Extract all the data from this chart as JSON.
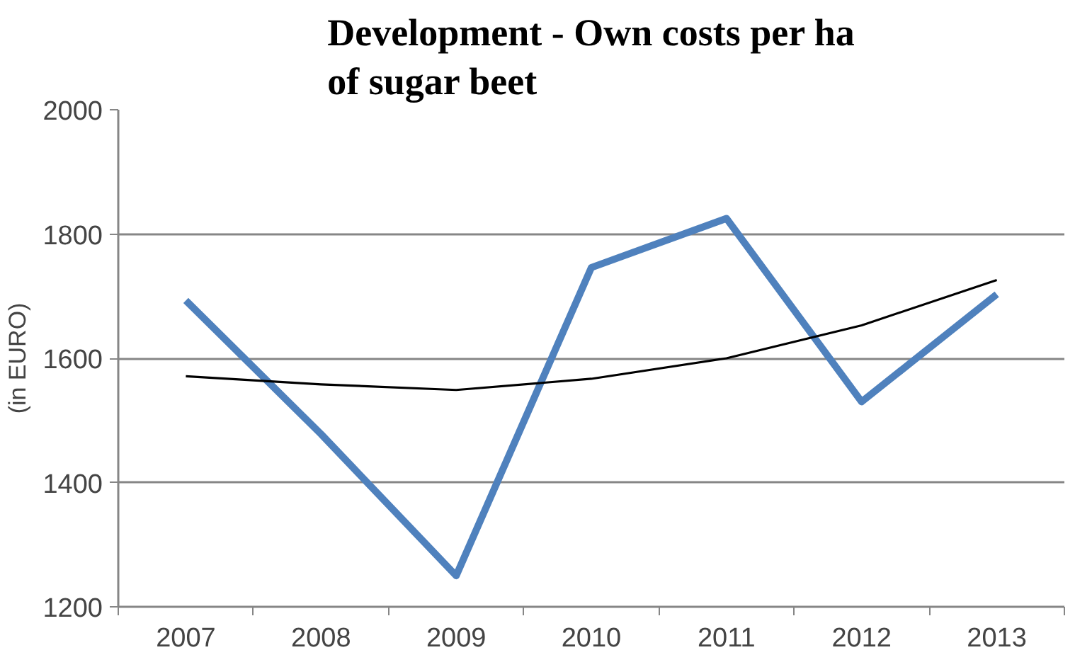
{
  "chart_data": {
    "type": "line",
    "title": "Development - Own costs per ha\nof sugar beet",
    "ylabel": "(in EURO)",
    "categories": [
      "2007",
      "2008",
      "2009",
      "2010",
      "2011",
      "2012",
      "2013"
    ],
    "series": [
      {
        "color": "#4f81bd",
        "values": [
          1693,
          1478,
          1250,
          1746,
          1825,
          1530,
          1703
        ]
      },
      {
        "type": "line",
        "color": "#000000",
        "values": [
          1571,
          1558,
          1549,
          1567,
          1600,
          1653,
          1726
        ]
      }
    ],
    "ylim": [
      1200,
      2000
    ],
    "yticks": [
      1200,
      1400,
      1600,
      1800,
      2000
    ],
    "grid": "y"
  }
}
